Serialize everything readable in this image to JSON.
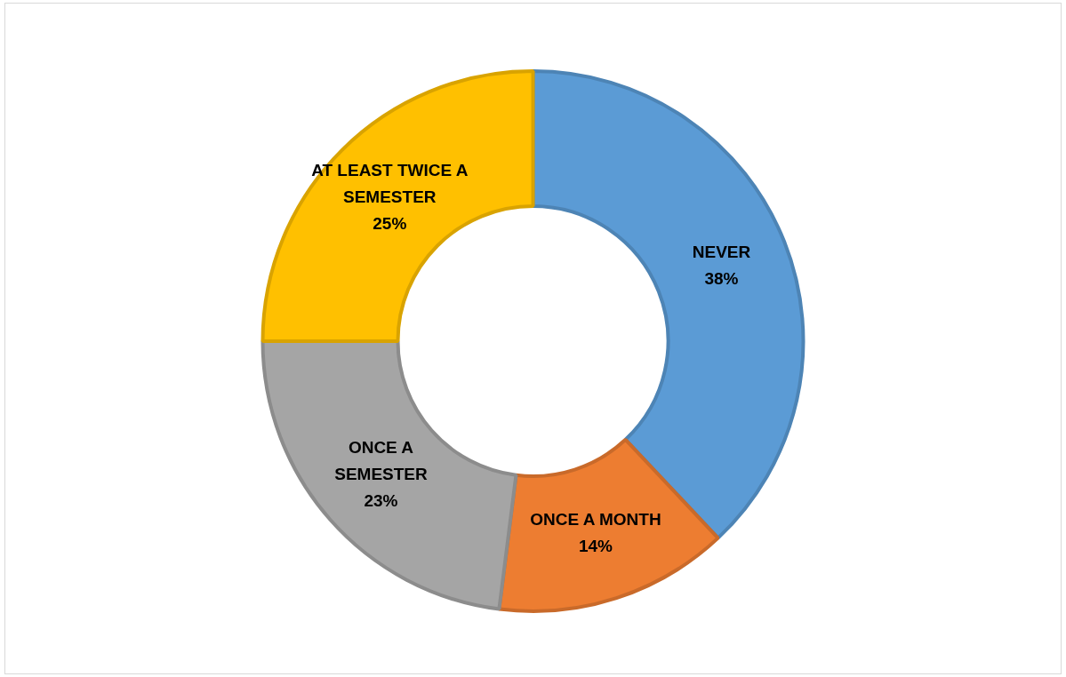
{
  "chart_data": {
    "type": "donut",
    "categories": [
      "NEVER",
      "ONCE A MONTH",
      "ONCE A SEMESTER",
      "AT LEAST TWICE A SEMESTER"
    ],
    "values": [
      38,
      14,
      23,
      25
    ],
    "colors": [
      "#5b9bd5",
      "#ed7d31",
      "#a5a5a5",
      "#ffc000"
    ],
    "value_labels": [
      "38%",
      "14%",
      "23%",
      "25%"
    ],
    "legend": false
  }
}
